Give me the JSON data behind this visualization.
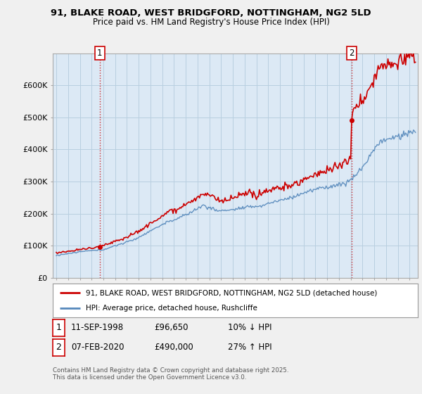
{
  "title_line1": "91, BLAKE ROAD, WEST BRIDGFORD, NOTTINGHAM, NG2 5LD",
  "title_line2": "Price paid vs. HM Land Registry's House Price Index (HPI)",
  "ylim": [
    0,
    700000
  ],
  "yticks": [
    0,
    100000,
    200000,
    300000,
    400000,
    500000,
    600000
  ],
  "ytick_labels": [
    "£0",
    "£100K",
    "£200K",
    "£300K",
    "£400K",
    "£500K",
    "£600K"
  ],
  "xlim_start": 1994.7,
  "xlim_end": 2025.7,
  "line1_color": "#cc0000",
  "line2_color": "#5588bb",
  "vline_color": "#cc0000",
  "point1_x": 1998.69,
  "point1_y": 96650,
  "point2_x": 2020.09,
  "point2_y": 490000,
  "legend_label1": "91, BLAKE ROAD, WEST BRIDGFORD, NOTTINGHAM, NG2 5LD (detached house)",
  "legend_label2": "HPI: Average price, detached house, Rushcliffe",
  "table_row1": [
    "1",
    "11-SEP-1998",
    "£96,650",
    "10% ↓ HPI"
  ],
  "table_row2": [
    "2",
    "07-FEB-2020",
    "£490,000",
    "27% ↑ HPI"
  ],
  "footer_text": "Contains HM Land Registry data © Crown copyright and database right 2025.\nThis data is licensed under the Open Government Licence v3.0.",
  "bg_color": "#f0f0f0",
  "plot_bg_color": "#dce9f5",
  "grid_color": "#b8cfe0"
}
